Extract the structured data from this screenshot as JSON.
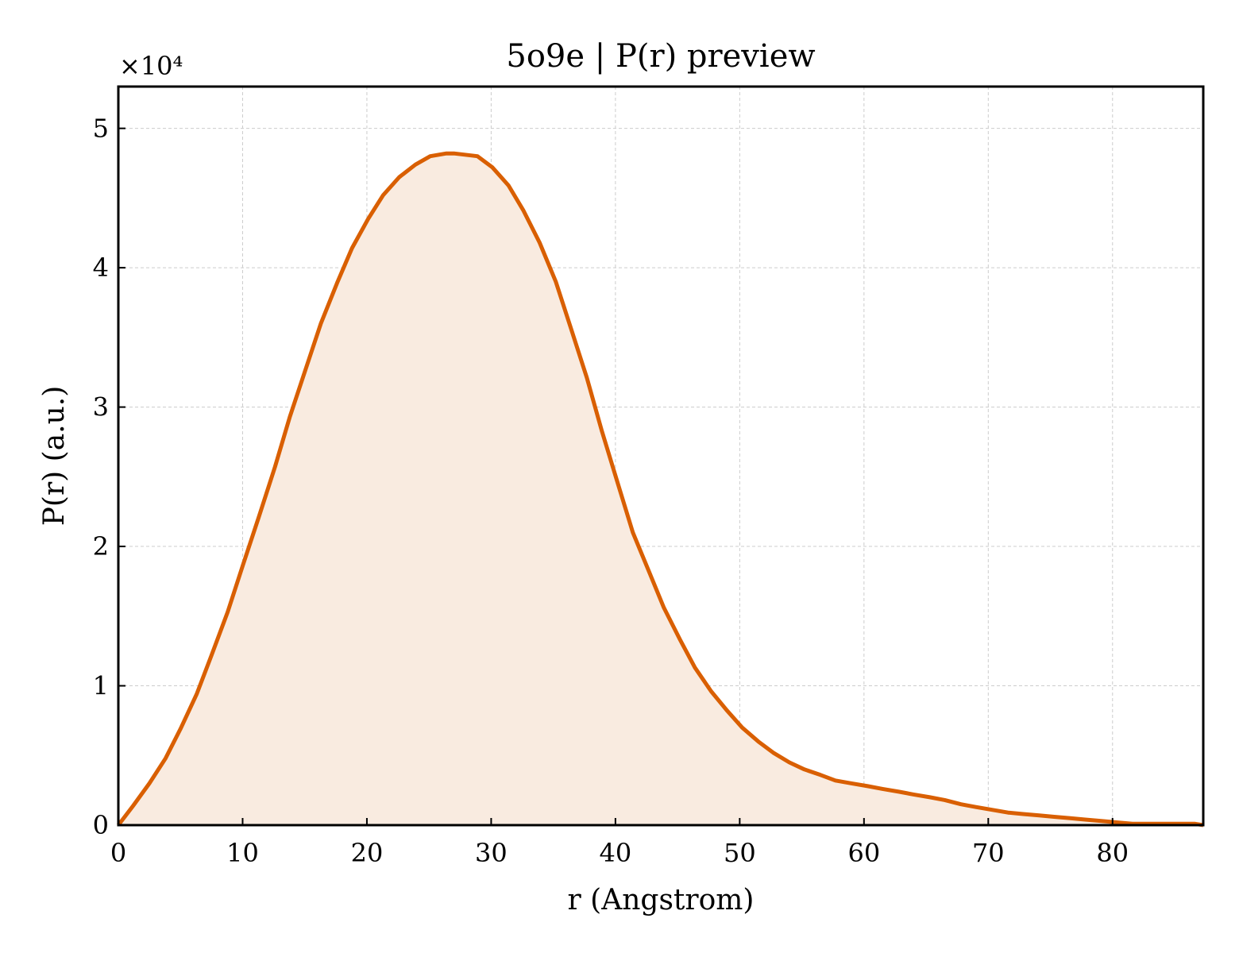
{
  "chart_data": {
    "type": "area",
    "title": "5o9e | P(r) preview",
    "xlabel": "r (Angstrom)",
    "ylabel": "P(r) (a.u.)",
    "y_offset_label": "×10⁴",
    "xlim": [
      0,
      87.3
    ],
    "ylim": [
      0,
      5.3
    ],
    "x_ticks": [
      0,
      10,
      20,
      30,
      40,
      50,
      60,
      70,
      80
    ],
    "y_ticks": [
      0,
      1,
      2,
      3,
      4,
      5
    ],
    "grid": true,
    "line_color": "#d95f02",
    "fill_color": "#f9ebe0",
    "series": [
      {
        "x": [
          0,
          1.2,
          2.5,
          3.8,
          5.0,
          6.3,
          7.5,
          8.8,
          10.0,
          11.3,
          12.6,
          13.8,
          15.1,
          16.3,
          17.6,
          18.8,
          20.1,
          21.3,
          22.6,
          23.9,
          25.1,
          26.4,
          27.0,
          28.9,
          30.1,
          31.4,
          32.6,
          33.9,
          35.2,
          36.4,
          37.7,
          38.9,
          40.2,
          41.4,
          42.7,
          43.9,
          45.2,
          46.4,
          47.7,
          49.0,
          50.2,
          51.5,
          52.7,
          54.0,
          55.2,
          56.5,
          57.7,
          59.0,
          60.3,
          61.5,
          62.8,
          64.0,
          65.3,
          66.5,
          67.8,
          69.0,
          70.3,
          71.6,
          72.8,
          74.1,
          75.3,
          76.6,
          77.8,
          79.1,
          80.3,
          81.6,
          82.8,
          84.1,
          85.4,
          86.6,
          87.3
        ],
        "y": [
          0.0,
          0.14,
          0.3,
          0.48,
          0.69,
          0.94,
          1.22,
          1.53,
          1.86,
          2.21,
          2.57,
          2.93,
          3.28,
          3.6,
          3.89,
          4.14,
          4.35,
          4.52,
          4.65,
          4.74,
          4.8,
          4.82,
          4.82,
          4.8,
          4.72,
          4.59,
          4.41,
          4.18,
          3.9,
          3.57,
          3.21,
          2.83,
          2.45,
          2.1,
          1.82,
          1.56,
          1.33,
          1.13,
          0.96,
          0.82,
          0.7,
          0.6,
          0.52,
          0.45,
          0.4,
          0.36,
          0.32,
          0.3,
          0.28,
          0.26,
          0.24,
          0.22,
          0.2,
          0.18,
          0.15,
          0.13,
          0.11,
          0.09,
          0.08,
          0.07,
          0.06,
          0.05,
          0.04,
          0.03,
          0.02,
          0.01,
          0.01,
          0.01,
          0.01,
          0.01,
          0.0
        ]
      }
    ]
  }
}
